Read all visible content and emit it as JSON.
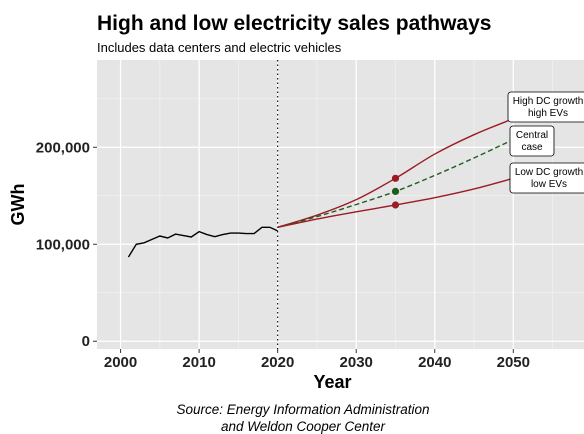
{
  "chart_data": {
    "type": "line",
    "title": "High and low electricity sales pathways",
    "subtitle": "Includes data centers and electric vehicles",
    "xlabel": "Year",
    "ylabel": "GWh",
    "caption": [
      "Source: Energy Information Administration",
      "and Weldon Cooper Center"
    ],
    "xlim": [
      1997,
      2059
    ],
    "ylim": [
      -8000,
      290000
    ],
    "x_ticks": [
      2000,
      2010,
      2020,
      2030,
      2040,
      2050
    ],
    "x_tick_labels": [
      "2000",
      "2010",
      "2020",
      "2030",
      "2040",
      "2050"
    ],
    "y_ticks": [
      0,
      100000,
      200000
    ],
    "y_tick_labels": [
      "0",
      "100,000",
      "200,000"
    ],
    "grid": true,
    "legend": "none",
    "reference_line": {
      "x": 2020,
      "style": "dotted"
    },
    "series": [
      {
        "key": "historical",
        "color": "#000000",
        "style": "solid",
        "x": [
          2001,
          2002,
          2003,
          2004,
          2005,
          2006,
          2007,
          2008,
          2009,
          2010,
          2011,
          2012,
          2013,
          2014,
          2015,
          2016,
          2017,
          2018,
          2019,
          2020
        ],
        "y": [
          86800,
          100000,
          101500,
          105000,
          108500,
          106500,
          110500,
          109000,
          107500,
          113000,
          110000,
          107800,
          110000,
          111500,
          111500,
          111000,
          111000,
          117500,
          117500,
          113800
        ],
        "points": []
      },
      {
        "key": "high",
        "color": "#9b1c24",
        "style": "solid",
        "x": [
          2020,
          2025,
          2030,
          2035,
          2040,
          2045,
          2050
        ],
        "y": [
          117500,
          130000,
          146000,
          168000,
          193000,
          213000,
          229500
        ],
        "points": [
          {
            "x": 2035,
            "y": 168000
          },
          {
            "x": 2050,
            "y": 229500
          }
        ]
      },
      {
        "key": "central",
        "color": "#1f5d1f",
        "style": "dashed",
        "x": [
          2020,
          2025,
          2030,
          2035,
          2040,
          2045,
          2050
        ],
        "y": [
          117500,
          128500,
          141000,
          154500,
          171000,
          189000,
          208000
        ],
        "points": [
          {
            "x": 2035,
            "y": 154500
          },
          {
            "x": 2050,
            "y": 208000
          }
        ]
      },
      {
        "key": "low",
        "color": "#9b1c24",
        "style": "solid",
        "x": [
          2020,
          2025,
          2030,
          2035,
          2040,
          2045,
          2050
        ],
        "y": [
          117500,
          126000,
          133500,
          140500,
          148000,
          157000,
          168000
        ],
        "points": [
          {
            "x": 2035,
            "y": 140500
          },
          {
            "x": 2050,
            "y": 168000
          }
        ]
      }
    ],
    "annotations": [
      {
        "key": "high",
        "lines": [
          "High DC growth",
          "high EVs"
        ],
        "x": 2050,
        "y": 229500
      },
      {
        "key": "central",
        "lines": [
          "Central",
          "case"
        ],
        "x": 2050,
        "y": 208000
      },
      {
        "key": "low",
        "lines": [
          "Low DC growth",
          "low EVs"
        ],
        "x": 2050,
        "y": 168000
      }
    ]
  }
}
